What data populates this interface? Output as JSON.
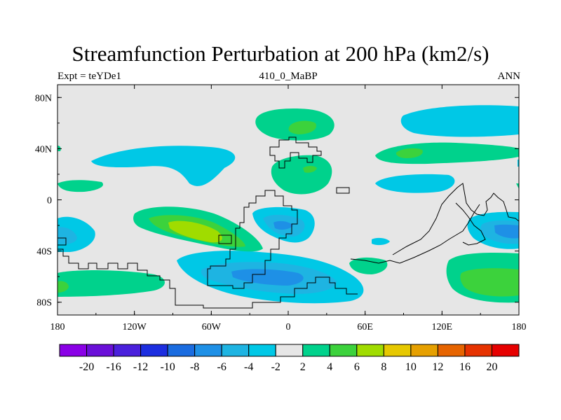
{
  "title": "Streamfunction Perturbation at 200 hPa (km2/s)",
  "subtitle_left": "Expt = teYDe1",
  "subtitle_center": "410_0_MaBP",
  "subtitle_right": "ANN",
  "chart_data": {
    "type": "filled-contour-map",
    "variable": "Streamfunction perturbation",
    "level": "200 hPa",
    "units": "km2/s",
    "xlim": [
      -180,
      180
    ],
    "ylim": [
      -90,
      90
    ],
    "x_ticks": [
      {
        "value": -180,
        "label": "180"
      },
      {
        "value": -120,
        "label": "120W"
      },
      {
        "value": -60,
        "label": "60W"
      },
      {
        "value": 0,
        "label": "0"
      },
      {
        "value": 60,
        "label": "60E"
      },
      {
        "value": 120,
        "label": "120E"
      },
      {
        "value": 180,
        "label": "180"
      }
    ],
    "y_ticks": [
      {
        "value": 80,
        "label": "80N"
      },
      {
        "value": 40,
        "label": "40N"
      },
      {
        "value": 0,
        "label": "0"
      },
      {
        "value": -40,
        "label": "40S"
      },
      {
        "value": -80,
        "label": "80S"
      }
    ],
    "colorbar": {
      "levels": [
        -20,
        -16,
        -12,
        -10,
        -8,
        -6,
        -4,
        -2,
        2,
        4,
        6,
        8,
        10,
        12,
        16,
        20
      ],
      "labels": [
        "-20",
        "-16",
        "-12",
        "-10",
        "-8",
        "-6",
        "-4",
        "-2",
        "2",
        "4",
        "6",
        "8",
        "10",
        "12",
        "16",
        "20"
      ],
      "colors": [
        "#8a00e6",
        "#6a0fd8",
        "#4a20dc",
        "#1c2ee0",
        "#1a6ce0",
        "#1e90e6",
        "#1eb4e2",
        "#00c8e6",
        "#e6e6e6",
        "#00d28c",
        "#3cd23c",
        "#a0dc00",
        "#e6c800",
        "#e6a000",
        "#e66400",
        "#e63200",
        "#e60000"
      ]
    },
    "background_color": "#e6e6e6",
    "anomaly_regions": [
      {
        "name": "n-pacific-subpolar-positive",
        "lon": -5,
        "lat": 68,
        "value": 4
      },
      {
        "name": "n-pacific-subpolar-core",
        "lon": 3,
        "lat": 65,
        "value": 6
      },
      {
        "name": "n-pacific-high-lat-negative",
        "lon": 107,
        "lat": 68,
        "value": -4
      },
      {
        "name": "n-midlat-negative-west",
        "lon": -95,
        "lat": 30,
        "value": -4
      },
      {
        "name": "n-midlat-positive-east",
        "lon": 105,
        "lat": 35,
        "value": 4
      },
      {
        "name": "n-midlat-positive-east-core",
        "lon": 95,
        "lat": 37,
        "value": 6
      },
      {
        "name": "n-subtropical-positive",
        "lon": 15,
        "lat": 22,
        "value": 4
      },
      {
        "name": "n-subtropical-positive-core",
        "lon": 18,
        "lat": 24,
        "value": 6
      },
      {
        "name": "s-subtropical-positive",
        "lon": -85,
        "lat": -22,
        "value": 8
      },
      {
        "name": "s-subtropical-negative",
        "lon": -10,
        "lat": -22,
        "value": -6
      },
      {
        "name": "s-subpolar-negative",
        "lon": -5,
        "lat": -64,
        "value": -8
      },
      {
        "name": "s-subpolar-positive-east",
        "lon": 155,
        "lat": -62,
        "value": 6
      },
      {
        "name": "s-tropical-negative-east",
        "lon": 160,
        "lat": -25,
        "value": -6
      },
      {
        "name": "s-tropical-negative-west",
        "lon": -172,
        "lat": -28,
        "value": -4
      },
      {
        "name": "s-polar-positive-west",
        "lon": -160,
        "lat": -70,
        "value": 4
      }
    ]
  }
}
